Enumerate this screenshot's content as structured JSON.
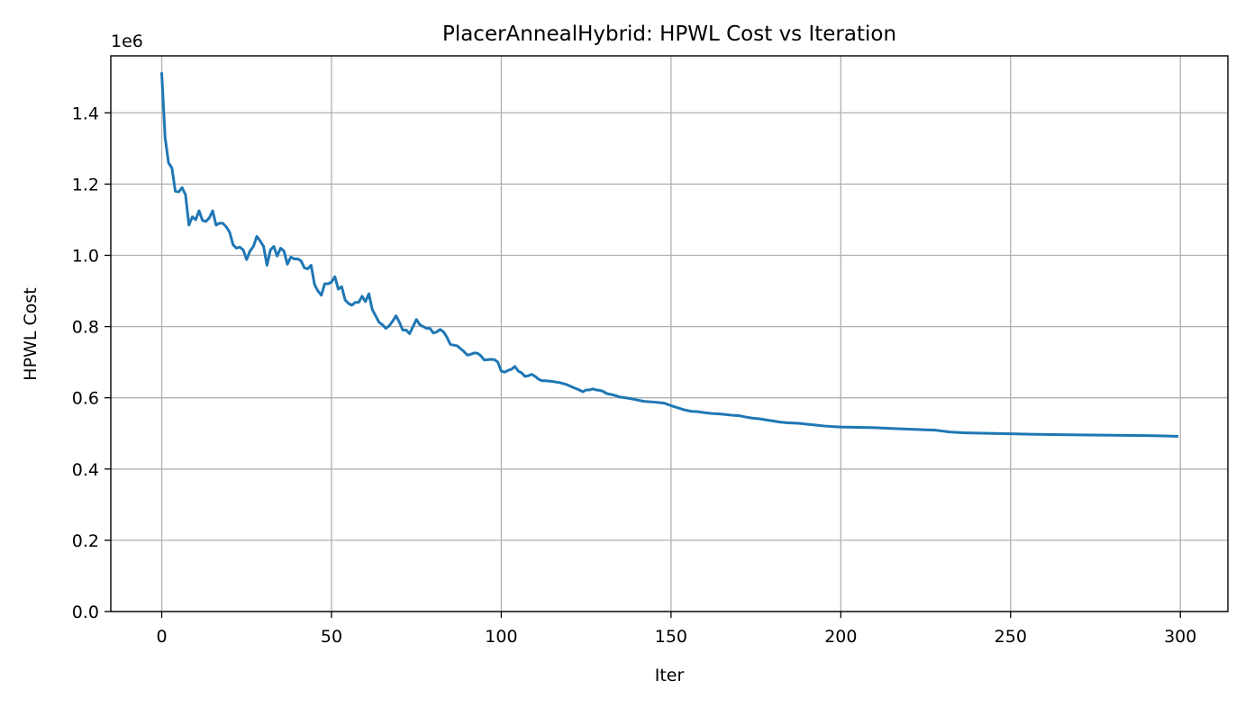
{
  "chart_data": {
    "type": "line",
    "title": "PlacerAnnealHybrid: HPWL Cost vs Iteration",
    "xlabel": "Iter",
    "ylabel": "HPWL Cost",
    "y_offset_label": "1e6",
    "xlim": [
      -15,
      314
    ],
    "ylim": [
      0,
      1.56
    ],
    "y_scale_note": "values in units of 1e6",
    "grid": true,
    "legend": "none",
    "x_ticks": [
      0,
      50,
      100,
      150,
      200,
      250,
      300
    ],
    "x_tick_labels": [
      "0",
      "50",
      "100",
      "150",
      "200",
      "250",
      "300"
    ],
    "y_ticks": [
      0,
      0.2,
      0.4,
      0.6,
      0.8,
      1.0,
      1.2,
      1.4
    ],
    "y_tick_labels": [
      "0.0",
      "0.2",
      "0.4",
      "0.6",
      "0.8",
      "1.0",
      "1.2",
      "1.4"
    ],
    "series": [
      {
        "color": "#1f77b4",
        "points": [
          [
            0,
            1.51
          ],
          [
            1,
            1.33
          ],
          [
            2,
            1.26
          ],
          [
            3,
            1.245
          ],
          [
            4,
            1.18
          ],
          [
            5,
            1.178
          ],
          [
            6,
            1.19
          ],
          [
            7,
            1.17
          ],
          [
            8,
            1.085
          ],
          [
            9,
            1.108
          ],
          [
            10,
            1.1
          ],
          [
            11,
            1.125
          ],
          [
            12,
            1.098
          ],
          [
            13,
            1.095
          ],
          [
            14,
            1.105
          ],
          [
            15,
            1.125
          ],
          [
            16,
            1.085
          ],
          [
            17,
            1.09
          ],
          [
            18,
            1.09
          ],
          [
            19,
            1.08
          ],
          [
            20,
            1.065
          ],
          [
            21,
            1.03
          ],
          [
            22,
            1.02
          ],
          [
            23,
            1.023
          ],
          [
            24,
            1.015
          ],
          [
            25,
            0.988
          ],
          [
            26,
            1.012
          ],
          [
            27,
            1.025
          ],
          [
            28,
            1.053
          ],
          [
            29,
            1.04
          ],
          [
            30,
            1.025
          ],
          [
            31,
            0.972
          ],
          [
            32,
            1.015
          ],
          [
            33,
            1.025
          ],
          [
            34,
            0.998
          ],
          [
            35,
            1.02
          ],
          [
            36,
            1.012
          ],
          [
            37,
            0.975
          ],
          [
            38,
            0.995
          ],
          [
            39,
            0.99
          ],
          [
            40,
            0.99
          ],
          [
            41,
            0.985
          ],
          [
            42,
            0.965
          ],
          [
            43,
            0.962
          ],
          [
            44,
            0.972
          ],
          [
            45,
            0.918
          ],
          [
            46,
            0.9
          ],
          [
            47,
            0.888
          ],
          [
            48,
            0.92
          ],
          [
            49,
            0.92
          ],
          [
            50,
            0.925
          ],
          [
            51,
            0.94
          ],
          [
            52,
            0.905
          ],
          [
            53,
            0.912
          ],
          [
            54,
            0.875
          ],
          [
            55,
            0.865
          ],
          [
            56,
            0.86
          ],
          [
            57,
            0.868
          ],
          [
            58,
            0.868
          ],
          [
            59,
            0.885
          ],
          [
            60,
            0.87
          ],
          [
            61,
            0.892
          ],
          [
            62,
            0.848
          ],
          [
            63,
            0.83
          ],
          [
            64,
            0.812
          ],
          [
            65,
            0.805
          ],
          [
            66,
            0.795
          ],
          [
            67,
            0.802
          ],
          [
            68,
            0.815
          ],
          [
            69,
            0.83
          ],
          [
            70,
            0.812
          ],
          [
            71,
            0.79
          ],
          [
            72,
            0.79
          ],
          [
            73,
            0.78
          ],
          [
            74,
            0.8
          ],
          [
            75,
            0.82
          ],
          [
            76,
            0.805
          ],
          [
            77,
            0.8
          ],
          [
            78,
            0.795
          ],
          [
            79,
            0.795
          ],
          [
            80,
            0.782
          ],
          [
            81,
            0.785
          ],
          [
            82,
            0.792
          ],
          [
            83,
            0.785
          ],
          [
            84,
            0.77
          ],
          [
            85,
            0.75
          ],
          [
            86,
            0.748
          ],
          [
            87,
            0.746
          ],
          [
            88,
            0.738
          ],
          [
            89,
            0.73
          ],
          [
            90,
            0.72
          ],
          [
            91,
            0.722
          ],
          [
            92,
            0.726
          ],
          [
            93,
            0.725
          ],
          [
            94,
            0.718
          ],
          [
            95,
            0.706
          ],
          [
            96,
            0.707
          ],
          [
            97,
            0.708
          ],
          [
            98,
            0.707
          ],
          [
            99,
            0.7
          ],
          [
            100,
            0.675
          ],
          [
            101,
            0.672
          ],
          [
            102,
            0.677
          ],
          [
            103,
            0.68
          ],
          [
            104,
            0.688
          ],
          [
            105,
            0.675
          ],
          [
            106,
            0.67
          ],
          [
            107,
            0.66
          ],
          [
            108,
            0.662
          ],
          [
            109,
            0.666
          ],
          [
            110,
            0.66
          ],
          [
            111,
            0.652
          ],
          [
            112,
            0.648
          ],
          [
            113,
            0.648
          ],
          [
            115,
            0.646
          ],
          [
            117,
            0.643
          ],
          [
            119,
            0.638
          ],
          [
            121,
            0.63
          ],
          [
            123,
            0.622
          ],
          [
            124,
            0.617
          ],
          [
            125,
            0.622
          ],
          [
            126,
            0.622
          ],
          [
            127,
            0.625
          ],
          [
            128,
            0.622
          ],
          [
            129,
            0.621
          ],
          [
            130,
            0.618
          ],
          [
            131,
            0.612
          ],
          [
            133,
            0.608
          ],
          [
            135,
            0.602
          ],
          [
            138,
            0.598
          ],
          [
            140,
            0.594
          ],
          [
            142,
            0.59
          ],
          [
            145,
            0.588
          ],
          [
            148,
            0.585
          ],
          [
            150,
            0.578
          ],
          [
            152,
            0.572
          ],
          [
            154,
            0.566
          ],
          [
            156,
            0.562
          ],
          [
            158,
            0.561
          ],
          [
            160,
            0.558
          ],
          [
            162,
            0.556
          ],
          [
            164,
            0.555
          ],
          [
            166,
            0.553
          ],
          [
            168,
            0.551
          ],
          [
            170,
            0.55
          ],
          [
            172,
            0.546
          ],
          [
            174,
            0.543
          ],
          [
            176,
            0.541
          ],
          [
            178,
            0.538
          ],
          [
            180,
            0.535
          ],
          [
            182,
            0.532
          ],
          [
            184,
            0.53
          ],
          [
            186,
            0.529
          ],
          [
            188,
            0.528
          ],
          [
            190,
            0.526
          ],
          [
            192,
            0.524
          ],
          [
            195,
            0.521
          ],
          [
            198,
            0.519
          ],
          [
            200,
            0.518
          ],
          [
            205,
            0.517
          ],
          [
            210,
            0.516
          ],
          [
            215,
            0.514
          ],
          [
            220,
            0.512
          ],
          [
            225,
            0.51
          ],
          [
            228,
            0.509
          ],
          [
            232,
            0.504
          ],
          [
            236,
            0.502
          ],
          [
            240,
            0.501
          ],
          [
            245,
            0.5
          ],
          [
            250,
            0.499
          ],
          [
            260,
            0.497
          ],
          [
            270,
            0.496
          ],
          [
            280,
            0.495
          ],
          [
            290,
            0.494
          ],
          [
            295,
            0.493
          ],
          [
            299,
            0.492
          ]
        ]
      }
    ]
  }
}
